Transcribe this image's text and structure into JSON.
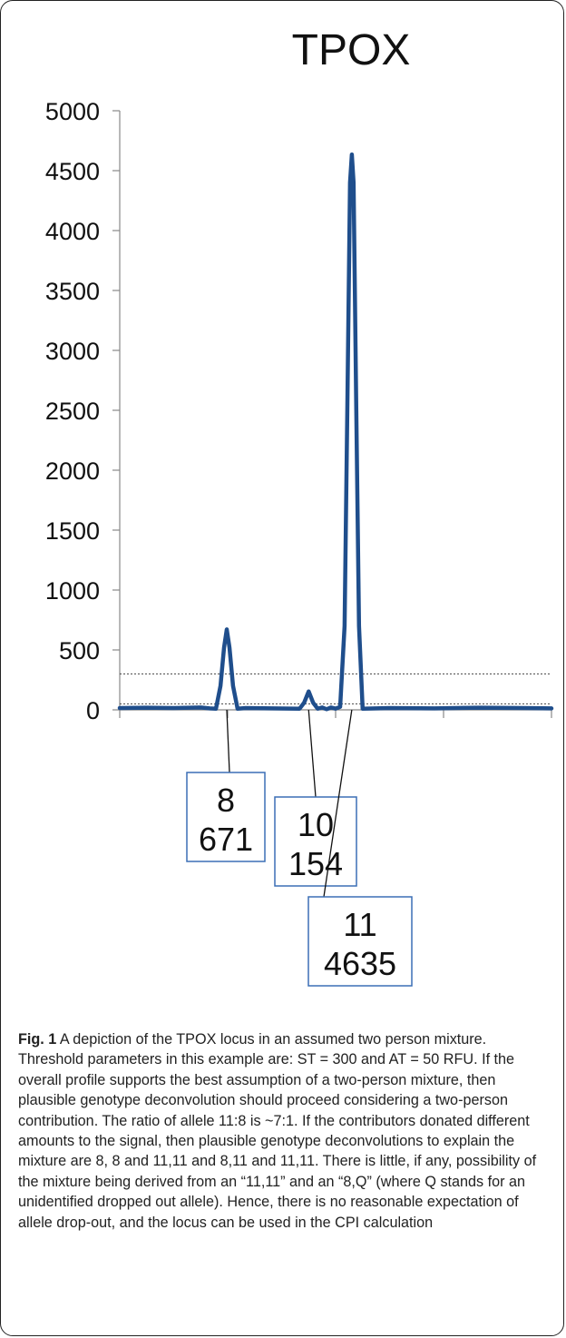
{
  "chart_data": {
    "type": "line",
    "title": "TPOX",
    "xlabel": "",
    "ylabel": "",
    "ylim": [
      0,
      5000
    ],
    "yticks": [
      "0",
      "500",
      "1000",
      "1500",
      "2000",
      "2500",
      "3000",
      "3500",
      "4000",
      "4500",
      "5000"
    ],
    "y_tick_values": [
      0,
      500,
      1000,
      1500,
      2000,
      2500,
      3000,
      3500,
      4000,
      4500,
      5000
    ],
    "series": [
      {
        "color": "#1f4e8c",
        "points": [
          [
            0,
            15
          ],
          [
            30,
            18
          ],
          [
            60,
            15
          ],
          [
            90,
            20
          ],
          [
            100,
            12
          ],
          [
            107,
            10
          ],
          [
            112,
            200
          ],
          [
            116,
            520
          ],
          [
            119,
            671
          ],
          [
            122,
            520
          ],
          [
            126,
            200
          ],
          [
            131,
            10
          ],
          [
            140,
            15
          ],
          [
            170,
            12
          ],
          [
            200,
            10
          ],
          [
            205,
            60
          ],
          [
            210,
            154
          ],
          [
            215,
            60
          ],
          [
            220,
            10
          ],
          [
            225,
            20
          ],
          [
            230,
            5
          ],
          [
            235,
            20
          ],
          [
            240,
            10
          ],
          [
            245,
            25
          ],
          [
            250,
            700
          ],
          [
            253,
            2500
          ],
          [
            256,
            4400
          ],
          [
            258,
            4635
          ],
          [
            260,
            4400
          ],
          [
            263,
            2500
          ],
          [
            266,
            700
          ],
          [
            270,
            10
          ],
          [
            300,
            15
          ],
          [
            350,
            12
          ],
          [
            400,
            18
          ],
          [
            450,
            15
          ],
          [
            480,
            12
          ]
        ]
      }
    ],
    "thresholds": [
      {
        "name": "ST",
        "value": 300,
        "style": "dotted"
      },
      {
        "name": "AT",
        "value": 50,
        "style": "dotted"
      }
    ],
    "annotations": [
      {
        "allele": "8",
        "height": "671",
        "x": 119
      },
      {
        "allele": "10",
        "height": "154",
        "x": 210
      },
      {
        "allele": "11",
        "height": "4635",
        "x": 258
      }
    ],
    "grid": false
  },
  "caption": {
    "label": "Fig. 1",
    "text": "A depiction of the TPOX locus in an assumed two person mixture. Threshold parameters in this example are: ST = 300 and AT = 50 RFU. If the overall profile supports the best assumption of a two-person mixture, then plausible genotype deconvolution should proceed considering a two-person contribution. The ratio of allele 11:8 is ~7:1. If the contributors donated different amounts to the signal, then plausible genotype deconvolutions to explain the mixture are 8, 8 and 11,11 and 8,11 and 11,11. There is little, if any, possibility of the mixture being derived from an “11,11” and an “8,Q” (where Q stands for an unidentified dropped out allele). Hence, there is no reasonable expectation of allele drop-out, and the locus can be used in the CPI calculation"
  }
}
